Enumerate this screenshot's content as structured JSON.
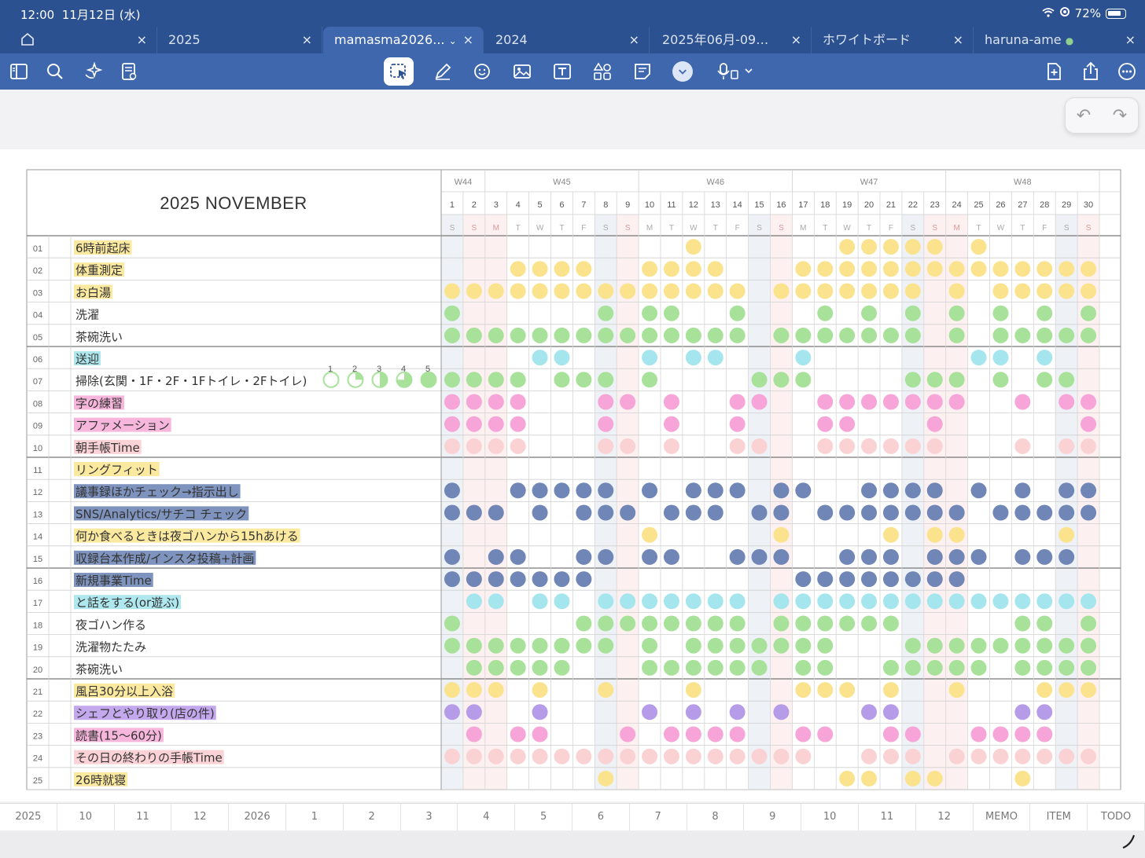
{
  "status": {
    "time": "12:00",
    "date": "11月12日 (水)",
    "battery": "72%"
  },
  "tabs": [
    {
      "label": "",
      "active": false
    },
    {
      "label": "2025",
      "active": false
    },
    {
      "label": "mamasma2026...",
      "active": true
    },
    {
      "label": "2024",
      "active": false
    },
    {
      "label": "2025年06月-09…",
      "active": false
    },
    {
      "label": "ホワイトボード",
      "active": false
    },
    {
      "label": "haruna-ame",
      "active": false
    }
  ],
  "toolbar_icons": [
    "sidebar-icon",
    "search-icon",
    "sparkle-icon",
    "document-settings-icon",
    "lasso-select-icon",
    "pen-icon",
    "sticker-icon",
    "image-icon",
    "text-box-icon",
    "shapes-icon",
    "note-icon",
    "chevron-down-icon",
    "microphone-icon",
    "add-page-icon",
    "share-icon",
    "more-icon"
  ],
  "planner": {
    "title": "2025 NOVEMBER",
    "weeks": [
      {
        "label": "W44",
        "span": 2
      },
      {
        "label": "W45",
        "span": 7
      },
      {
        "label": "W46",
        "span": 7
      },
      {
        "label": "W47",
        "span": 7
      },
      {
        "label": "W48",
        "span": 7
      }
    ],
    "days": [
      "1",
      "2",
      "3",
      "4",
      "5",
      "6",
      "7",
      "8",
      "9",
      "10",
      "11",
      "12",
      "13",
      "14",
      "15",
      "16",
      "17",
      "18",
      "19",
      "20",
      "21",
      "22",
      "23",
      "24",
      "25",
      "26",
      "27",
      "28",
      "29",
      "30"
    ],
    "weekdays": [
      "S",
      "S",
      "M",
      "T",
      "W",
      "T",
      "F",
      "S",
      "S",
      "M",
      "T",
      "W",
      "T",
      "F",
      "S",
      "S",
      "M",
      "T",
      "W",
      "T",
      "F",
      "S",
      "S",
      "M",
      "T",
      "W",
      "T",
      "F",
      "S",
      "S"
    ],
    "numbers": [
      "1",
      "2",
      "3",
      "4",
      "5"
    ],
    "habits": [
      {
        "no": "01",
        "text": "6時前起床",
        "color": "yellow",
        "dots": [
          12,
          19,
          20,
          21,
          22,
          23,
          25
        ]
      },
      {
        "no": "02",
        "text": "体重測定",
        "color": "yellow",
        "dots": [
          4,
          5,
          6,
          7,
          10,
          11,
          12,
          13,
          17,
          18,
          19,
          20,
          21,
          22,
          23,
          24,
          25,
          26,
          27,
          28,
          29,
          30
        ]
      },
      {
        "no": "03",
        "text": "お白湯",
        "color": "yellow",
        "dots": [
          1,
          2,
          3,
          4,
          5,
          6,
          7,
          8,
          9,
          10,
          11,
          12,
          13,
          14,
          16,
          17,
          18,
          19,
          20,
          21,
          22,
          24,
          26,
          27,
          28,
          29,
          30
        ]
      },
      {
        "no": "04",
        "text": "洗濯",
        "color": "green",
        "dots": [
          1,
          8,
          10,
          11,
          14,
          18,
          20,
          22,
          24,
          26,
          28,
          30
        ]
      },
      {
        "no": "05",
        "text": "茶碗洗い",
        "color": "green",
        "dots": [
          1,
          2,
          3,
          4,
          5,
          6,
          7,
          8,
          9,
          10,
          11,
          12,
          13,
          14,
          16,
          17,
          18,
          19,
          20,
          21,
          22,
          24,
          26,
          27,
          28,
          29,
          30
        ]
      },
      {
        "no": "06",
        "text": "送迎",
        "color": "cyan",
        "dots": [
          5,
          6,
          10,
          12,
          13,
          17,
          25,
          26,
          28
        ]
      },
      {
        "no": "07",
        "text": "掃除(玄関・1F・2F・1Fトイレ・2Fトイレ)",
        "color": "green",
        "dots": [
          1,
          2,
          3,
          4,
          6,
          7,
          8,
          10,
          15,
          16,
          17,
          22,
          23,
          24,
          26,
          28,
          29
        ]
      },
      {
        "no": "08",
        "text": "字の練習",
        "color": "pink",
        "dots": [
          1,
          2,
          3,
          4,
          8,
          9,
          11,
          14,
          15,
          18,
          19,
          20,
          21,
          22,
          23,
          24,
          27,
          29,
          30
        ]
      },
      {
        "no": "09",
        "text": "アファメーション",
        "color": "pink",
        "dots": [
          1,
          2,
          3,
          4,
          8,
          11,
          14,
          18,
          19,
          23,
          30
        ]
      },
      {
        "no": "10",
        "text": "朝手帳Time",
        "color": "lightpink",
        "dots": [
          1,
          2,
          3,
          4,
          8,
          9,
          11,
          14,
          15,
          18,
          19,
          20,
          21,
          22,
          23,
          27,
          29,
          30
        ]
      },
      {
        "no": "11",
        "text": "リングフィット",
        "color": "yellow",
        "dots": []
      },
      {
        "no": "12",
        "text": "議事録ほかチェック→指示出し",
        "color": "blue",
        "dots": [
          1,
          4,
          5,
          6,
          7,
          8,
          10,
          12,
          13,
          14,
          16,
          17,
          20,
          21,
          22,
          23,
          25,
          27,
          29,
          30
        ]
      },
      {
        "no": "13",
        "text": "SNS/Analytics/サチコ チェック",
        "color": "blue",
        "dots": [
          1,
          2,
          3,
          5,
          7,
          8,
          9,
          11,
          12,
          13,
          15,
          16,
          18,
          19,
          20,
          21,
          22,
          23,
          24,
          26,
          27,
          28,
          29,
          30
        ]
      },
      {
        "no": "14",
        "text": "何か食べるときは夜ゴハンから15hあける",
        "color": "yellow",
        "dots": [
          10,
          16,
          21,
          23,
          24,
          29
        ]
      },
      {
        "no": "15",
        "text": "収録台本作成/インスタ投稿+計画",
        "color": "blue",
        "dots": [
          1,
          3,
          4,
          7,
          8,
          10,
          11,
          14,
          15,
          16,
          19,
          20,
          21,
          23,
          24,
          25,
          27,
          28,
          29
        ]
      },
      {
        "no": "16",
        "text": "新規事業Time",
        "color": "blue",
        "dots": [
          1,
          2,
          3,
          4,
          5,
          6,
          7,
          17,
          18,
          19,
          20,
          21,
          22,
          23,
          24
        ]
      },
      {
        "no": "17",
        "text": "と話をする(or遊ぶ)",
        "color": "cyan",
        "dots": [
          2,
          3,
          5,
          6,
          8,
          9,
          10,
          11,
          12,
          13,
          14,
          16,
          17,
          18,
          19,
          20,
          21,
          22,
          23,
          24,
          25,
          26,
          27,
          28,
          29,
          30
        ]
      },
      {
        "no": "18",
        "text": "夜ゴハン作る",
        "color": "green",
        "dots": [
          1,
          7,
          8,
          9,
          10,
          11,
          12,
          13,
          14,
          16,
          17,
          18,
          19,
          20,
          21,
          27,
          28,
          30
        ]
      },
      {
        "no": "19",
        "text": "洗濯物たたみ",
        "color": "green",
        "dots": [
          1,
          2,
          3,
          4,
          5,
          6,
          7,
          8,
          10,
          12,
          13,
          14,
          15,
          16,
          17,
          18,
          22,
          23,
          24,
          25,
          26,
          27,
          28,
          29,
          30
        ]
      },
      {
        "no": "20",
        "text": "茶碗洗い",
        "color": "green",
        "dots": [
          2,
          3,
          4,
          5,
          6,
          10,
          11,
          12,
          13,
          14,
          15,
          17,
          18,
          21,
          22,
          23,
          24,
          25,
          27,
          28,
          29,
          30
        ]
      },
      {
        "no": "21",
        "text": "風呂30分以上入浴",
        "color": "yellow",
        "dots": [
          1,
          2,
          3,
          5,
          8,
          12,
          17,
          18,
          19,
          21,
          24,
          28,
          29,
          30
        ]
      },
      {
        "no": "22",
        "text": "シェフとやり取り(店の件)",
        "color": "purple",
        "dots": [
          1,
          2,
          5,
          10,
          12,
          14,
          16,
          20,
          21,
          27,
          28
        ]
      },
      {
        "no": "23",
        "text": "読書(15〜60分)",
        "color": "pink",
        "dots": [
          2,
          4,
          5,
          9,
          11,
          12,
          13,
          14,
          17,
          18,
          21,
          22,
          25,
          26,
          27,
          28
        ]
      },
      {
        "no": "24",
        "text": "その日の終わりの手帳Time",
        "color": "lightpink",
        "dots": [
          1,
          2,
          3,
          4,
          5,
          6,
          7,
          8,
          9,
          10,
          11,
          12,
          13,
          14,
          15,
          16,
          17,
          20,
          21,
          22,
          24,
          25,
          26,
          27,
          28,
          29,
          30
        ]
      },
      {
        "no": "25",
        "text": "26時就寝",
        "color": "yellow",
        "dots": [
          8,
          19,
          20,
          22,
          23,
          27
        ]
      }
    ]
  },
  "colors": {
    "yellow": "#fbe38e",
    "green": "#a8e29a",
    "cyan": "#a5e6ee",
    "pink": "#f7a5d8",
    "lightpink": "#fbd2d4",
    "blue": "#6f86b6",
    "purple": "#b69be8",
    "header_blue": "#2c5190",
    "toolbar_blue": "#3e67ad",
    "hl_yellow": "#fbe9a0",
    "hl_pink": "#f7b6dc",
    "hl_blue": "#7e93bd",
    "hl_cyan": "#aee8ee",
    "hl_purple": "#c4a8ee",
    "hl_lightpink": "#fbd3d6"
  },
  "bottomnav": [
    "2025",
    "10",
    "11",
    "12",
    "2026",
    "1",
    "2",
    "3",
    "4",
    "5",
    "6",
    "7",
    "8",
    "9",
    "10",
    "11",
    "12",
    "MEMO",
    "ITEM",
    "TODO"
  ]
}
